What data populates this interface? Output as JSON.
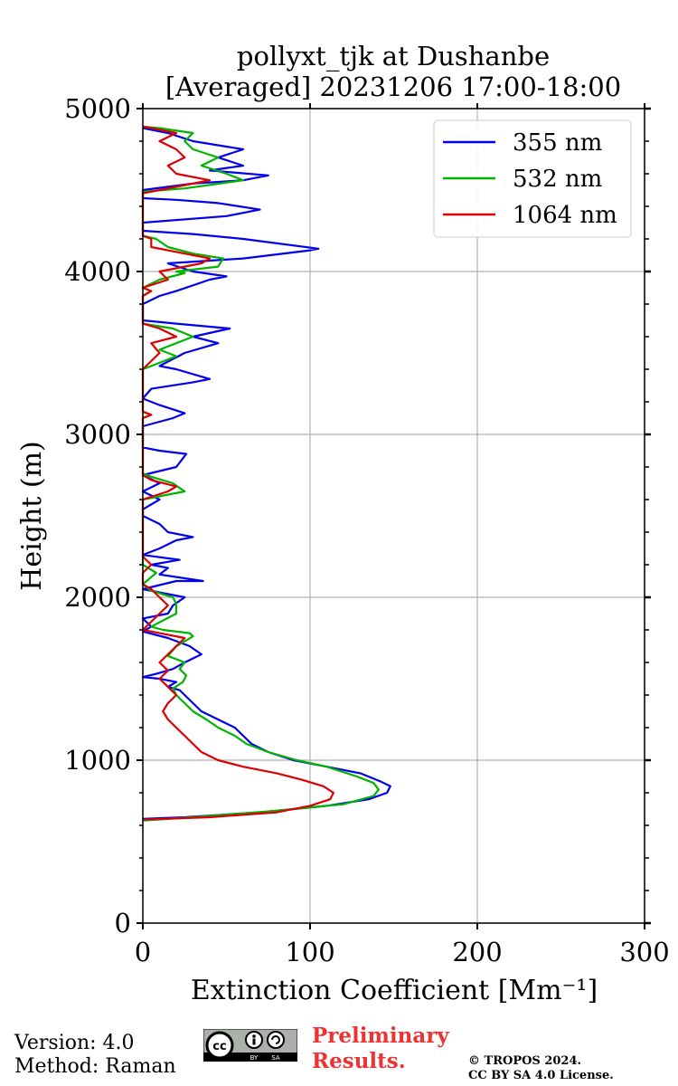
{
  "chart_data": {
    "type": "line",
    "title": "pollyxt_tjk at Dushanbe",
    "subtitle": "[Averaged] 20231206 17:00-18:00",
    "xlabel": "Extinction Coefficient [Mm⁻¹]",
    "ylabel": "Height (m)",
    "xlim": [
      0,
      300
    ],
    "ylim": [
      0,
      5000
    ],
    "xticks": [
      "0",
      "100",
      "200",
      "300"
    ],
    "yticks": [
      "0",
      "1000",
      "2000",
      "3000",
      "4000",
      "5000"
    ],
    "grid": true,
    "legend_position": "top-right",
    "series": [
      {
        "name": "355 nm",
        "color": "#0000ee",
        "points": [
          [
            0,
            640
          ],
          [
            25,
            650
          ],
          [
            70,
            680
          ],
          [
            110,
            720
          ],
          [
            135,
            760
          ],
          [
            146,
            800
          ],
          [
            148,
            840
          ],
          [
            142,
            870
          ],
          [
            130,
            920
          ],
          [
            110,
            960
          ],
          [
            90,
            1000
          ],
          [
            75,
            1050
          ],
          [
            65,
            1100
          ],
          [
            60,
            1150
          ],
          [
            55,
            1200
          ],
          [
            45,
            1250
          ],
          [
            35,
            1300
          ],
          [
            30,
            1350
          ],
          [
            25,
            1400
          ],
          [
            22,
            1430
          ],
          [
            15,
            1450
          ],
          [
            20,
            1480
          ],
          [
            10,
            1500
          ],
          [
            0,
            1510
          ],
          [
            8,
            1530
          ],
          [
            18,
            1560
          ],
          [
            25,
            1600
          ],
          [
            35,
            1650
          ],
          [
            28,
            1700
          ],
          [
            15,
            1750
          ],
          [
            0,
            1790
          ],
          [
            5,
            1820
          ],
          [
            0,
            1870
          ],
          [
            15,
            1900
          ],
          [
            18,
            1950
          ],
          [
            25,
            2000
          ],
          [
            10,
            2030
          ],
          [
            0,
            2050
          ],
          [
            20,
            2100
          ],
          [
            36,
            2100
          ],
          [
            10,
            2140
          ],
          [
            15,
            2180
          ],
          [
            5,
            2200
          ],
          [
            22,
            2230
          ],
          [
            0,
            2260
          ],
          [
            10,
            2300
          ],
          [
            20,
            2350
          ],
          [
            30,
            2370
          ],
          [
            15,
            2400
          ],
          [
            10,
            2450
          ],
          [
            0,
            2500
          ],
          [
            0,
            2540
          ],
          [
            10,
            2600
          ],
          [
            0,
            2650
          ],
          [
            10,
            2700
          ],
          [
            0,
            2750
          ],
          [
            20,
            2800
          ],
          [
            26,
            2880
          ],
          [
            10,
            2900
          ],
          [
            0,
            2920
          ],
          [
            0,
            3050
          ],
          [
            18,
            3100
          ],
          [
            25,
            3130
          ],
          [
            10,
            3180
          ],
          [
            0,
            3220
          ],
          [
            5,
            3280
          ],
          [
            30,
            3320
          ],
          [
            40,
            3340
          ],
          [
            20,
            3400
          ],
          [
            10,
            3420
          ],
          [
            25,
            3500
          ],
          [
            45,
            3560
          ],
          [
            30,
            3600
          ],
          [
            52,
            3650
          ],
          [
            20,
            3680
          ],
          [
            0,
            3700
          ],
          [
            0,
            3800
          ],
          [
            10,
            3850
          ],
          [
            20,
            3880
          ],
          [
            40,
            3950
          ],
          [
            50,
            3970
          ],
          [
            30,
            4000
          ],
          [
            15,
            4050
          ],
          [
            60,
            4080
          ],
          [
            100,
            4130
          ],
          [
            105,
            4140
          ],
          [
            60,
            4200
          ],
          [
            30,
            4230
          ],
          [
            0,
            4250
          ],
          [
            0,
            4300
          ],
          [
            50,
            4340
          ],
          [
            70,
            4380
          ],
          [
            45,
            4420
          ],
          [
            20,
            4440
          ],
          [
            0,
            4450
          ],
          [
            0,
            4500
          ],
          [
            15,
            4520
          ],
          [
            30,
            4540
          ],
          [
            60,
            4560
          ],
          [
            75,
            4590
          ],
          [
            40,
            4620
          ],
          [
            60,
            4650
          ],
          [
            45,
            4700
          ],
          [
            60,
            4750
          ],
          [
            30,
            4800
          ],
          [
            15,
            4850
          ],
          [
            0,
            4880
          ]
        ]
      },
      {
        "name": "532 nm",
        "color": "#00b400",
        "points": [
          [
            0,
            630
          ],
          [
            30,
            650
          ],
          [
            80,
            690
          ],
          [
            120,
            730
          ],
          [
            138,
            780
          ],
          [
            141,
            820
          ],
          [
            138,
            860
          ],
          [
            128,
            900
          ],
          [
            110,
            960
          ],
          [
            92,
            1000
          ],
          [
            75,
            1050
          ],
          [
            62,
            1100
          ],
          [
            55,
            1150
          ],
          [
            45,
            1200
          ],
          [
            38,
            1250
          ],
          [
            30,
            1300
          ],
          [
            25,
            1350
          ],
          [
            20,
            1400
          ],
          [
            18,
            1440
          ],
          [
            24,
            1480
          ],
          [
            26,
            1520
          ],
          [
            22,
            1560
          ],
          [
            25,
            1600
          ],
          [
            15,
            1640
          ],
          [
            20,
            1700
          ],
          [
            30,
            1760
          ],
          [
            28,
            1780
          ],
          [
            12,
            1800
          ],
          [
            5,
            1820
          ],
          [
            20,
            1900
          ],
          [
            20,
            1960
          ],
          [
            18,
            2000
          ],
          [
            5,
            2040
          ],
          [
            0,
            2080
          ],
          [
            8,
            2150
          ],
          [
            0,
            2200
          ],
          [
            0,
            2600
          ],
          [
            25,
            2650
          ],
          [
            18,
            2700
          ],
          [
            5,
            2740
          ],
          [
            0,
            2760
          ],
          [
            0,
            3100
          ],
          [
            5,
            3120
          ],
          [
            0,
            3140
          ],
          [
            0,
            3400
          ],
          [
            20,
            3480
          ],
          [
            10,
            3520
          ],
          [
            30,
            3600
          ],
          [
            18,
            3650
          ],
          [
            0,
            3680
          ],
          [
            0,
            3850
          ],
          [
            5,
            3880
          ],
          [
            0,
            3900
          ],
          [
            10,
            3950
          ],
          [
            25,
            3990
          ],
          [
            20,
            4000
          ],
          [
            45,
            4030
          ],
          [
            48,
            4080
          ],
          [
            30,
            4110
          ],
          [
            15,
            4150
          ],
          [
            8,
            4200
          ],
          [
            0,
            4220
          ],
          [
            0,
            4490
          ],
          [
            25,
            4510
          ],
          [
            60,
            4560
          ],
          [
            50,
            4600
          ],
          [
            35,
            4650
          ],
          [
            45,
            4700
          ],
          [
            30,
            4750
          ],
          [
            25,
            4800
          ],
          [
            30,
            4850
          ],
          [
            10,
            4880
          ],
          [
            0,
            4890
          ]
        ]
      },
      {
        "name": "1064 nm",
        "color": "#dd0000",
        "points": [
          [
            0,
            635
          ],
          [
            40,
            650
          ],
          [
            80,
            680
          ],
          [
            100,
            720
          ],
          [
            112,
            760
          ],
          [
            114,
            800
          ],
          [
            108,
            840
          ],
          [
            95,
            880
          ],
          [
            80,
            920
          ],
          [
            60,
            960
          ],
          [
            45,
            1000
          ],
          [
            35,
            1050
          ],
          [
            30,
            1100
          ],
          [
            25,
            1150
          ],
          [
            20,
            1200
          ],
          [
            15,
            1250
          ],
          [
            12,
            1300
          ],
          [
            15,
            1350
          ],
          [
            20,
            1400
          ],
          [
            15,
            1450
          ],
          [
            10,
            1500
          ],
          [
            15,
            1550
          ],
          [
            10,
            1600
          ],
          [
            15,
            1650
          ],
          [
            20,
            1700
          ],
          [
            25,
            1750
          ],
          [
            10,
            1780
          ],
          [
            0,
            1800
          ],
          [
            5,
            1850
          ],
          [
            10,
            1900
          ],
          [
            15,
            1950
          ],
          [
            10,
            2000
          ],
          [
            5,
            2050
          ],
          [
            0,
            2080
          ],
          [
            0,
            2150
          ],
          [
            5,
            2200
          ],
          [
            0,
            2250
          ],
          [
            0,
            2600
          ],
          [
            15,
            2650
          ],
          [
            20,
            2680
          ],
          [
            5,
            2720
          ],
          [
            0,
            2750
          ],
          [
            0,
            3100
          ],
          [
            5,
            3120
          ],
          [
            0,
            3140
          ],
          [
            0,
            3400
          ],
          [
            10,
            3500
          ],
          [
            5,
            3560
          ],
          [
            20,
            3600
          ],
          [
            10,
            3650
          ],
          [
            0,
            3680
          ],
          [
            0,
            3850
          ],
          [
            5,
            3880
          ],
          [
            0,
            3900
          ],
          [
            15,
            3950
          ],
          [
            10,
            4000
          ],
          [
            35,
            4050
          ],
          [
            40,
            4080
          ],
          [
            25,
            4110
          ],
          [
            5,
            4150
          ],
          [
            5,
            4200
          ],
          [
            0,
            4220
          ],
          [
            0,
            4480
          ],
          [
            10,
            4500
          ],
          [
            35,
            4550
          ],
          [
            40,
            4560
          ],
          [
            20,
            4600
          ],
          [
            15,
            4650
          ],
          [
            25,
            4700
          ],
          [
            20,
            4750
          ],
          [
            10,
            4800
          ],
          [
            20,
            4850
          ],
          [
            5,
            4880
          ],
          [
            0,
            4890
          ]
        ]
      }
    ]
  },
  "footer": {
    "version": "Version: 4.0",
    "method": "Method: Raman",
    "preliminary_line1": "Preliminary",
    "preliminary_line2": "Results.",
    "copyright_line1": "© TROPOS 2024.",
    "copyright_line2": "CC BY SA 4.0 License.",
    "license_icon": "cc-by-sa-icon",
    "license_badge_text": [
      "cc",
      "BY",
      "SA"
    ]
  }
}
